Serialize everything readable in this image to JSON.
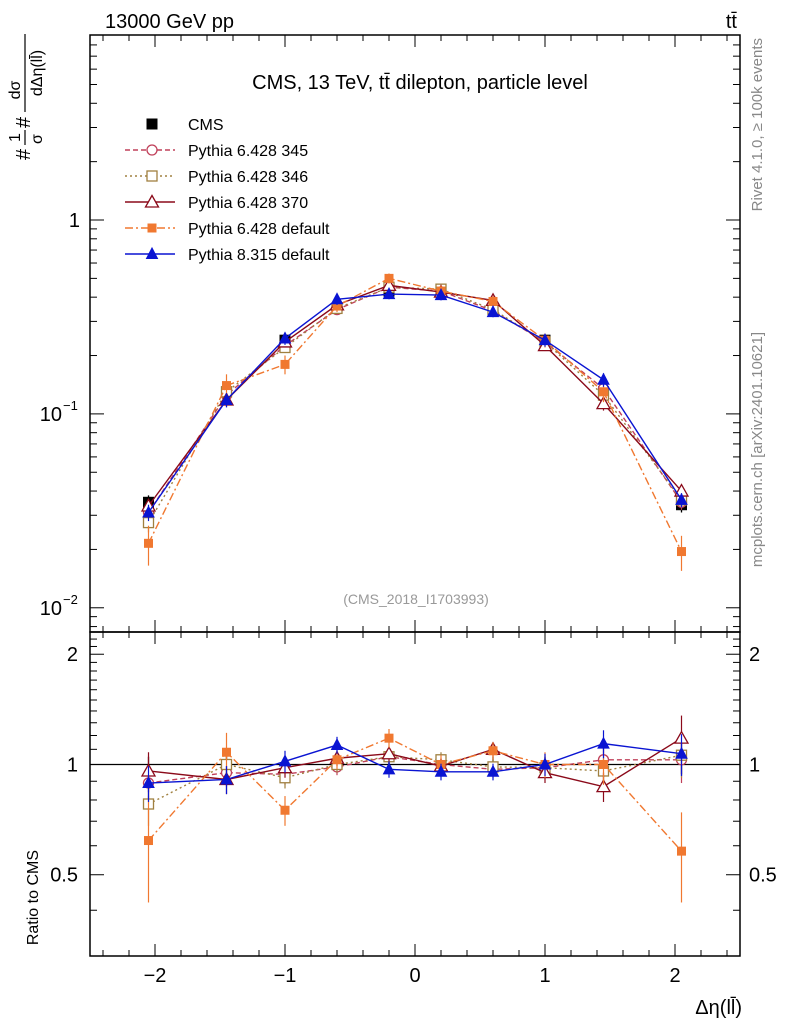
{
  "header": {
    "left": "13000 GeV pp",
    "right": "tt̄"
  },
  "side_text": {
    "rivet": "Rivet 4.1.0, ≥ 100k events",
    "mcplots": "mcplots.cern.ch [arXiv:2401.10621]"
  },
  "chart_data": {
    "type": "line",
    "title": "CMS, 13 TeV, tt̄ dilepton, particle level",
    "watermark": "(CMS_2018_I1703993)",
    "ylabel_top": "1/σ dσ/dΔη(ll̄)",
    "ylabel_top_parts": {
      "hash1": "#",
      "num1": "1",
      "den1": "σ",
      "hash2": "#",
      "num2": "dσ",
      "den2": "dΔη(ll̄)"
    },
    "ylabel_bottom": "Ratio to CMS",
    "xlabel": "Δη(ll̄)",
    "xlim": [
      -2.5,
      2.5
    ],
    "ylim_top": [
      0.0075,
      9.0
    ],
    "yscale_top": "log",
    "ylim_bottom": [
      0.3,
      2.3
    ],
    "yscale_bottom": "log",
    "x_ticks": [
      {
        "value": -2,
        "label": "−2"
      },
      {
        "value": -1,
        "label": "−1"
      },
      {
        "value": 0,
        "label": "0"
      },
      {
        "value": 1,
        "label": "1"
      },
      {
        "value": 2,
        "label": "2"
      }
    ],
    "y_ticks_top": [
      {
        "value": 0.01,
        "base": "10",
        "exp": "−2"
      },
      {
        "value": 0.1,
        "base": "10",
        "exp": "−1"
      },
      {
        "value": 1,
        "base": "1",
        "exp": ""
      }
    ],
    "y_ticks_bottom": [
      {
        "value": 0.5,
        "label": "0.5"
      },
      {
        "value": 1,
        "label": "1"
      },
      {
        "value": 2,
        "label": "2"
      }
    ],
    "x": [
      -2.05,
      -1.45,
      -1.0,
      -0.6,
      -0.2,
      0.2,
      0.6,
      1.0,
      1.45,
      2.05
    ],
    "data": {
      "name": "CMS",
      "values": [
        0.035,
        0.13,
        0.24,
        0.35,
        0.43,
        0.43,
        0.35,
        0.24,
        0.13,
        0.034
      ],
      "errors": [
        0.003,
        0.01,
        0.017,
        0.02,
        0.02,
        0.02,
        0.02,
        0.017,
        0.01,
        0.003
      ]
    },
    "series": [
      {
        "name": "Pythia 6.428 345",
        "color": "#c0405a",
        "dash": "5,3",
        "marker": "circle-open",
        "values": [
          0.031,
          0.125,
          0.225,
          0.345,
          0.45,
          0.43,
          0.34,
          0.235,
          0.135,
          0.035
        ],
        "errors": [
          0.003,
          0.009,
          0.013,
          0.017,
          0.02,
          0.02,
          0.017,
          0.013,
          0.009,
          0.003
        ]
      },
      {
        "name": "Pythia 6.428 346",
        "color": "#a08040",
        "dash": "2,3",
        "marker": "square-open",
        "values": [
          0.0275,
          0.13,
          0.22,
          0.35,
          0.45,
          0.44,
          0.345,
          0.235,
          0.125,
          0.036
        ],
        "errors": [
          0.003,
          0.009,
          0.013,
          0.017,
          0.02,
          0.02,
          0.017,
          0.013,
          0.009,
          0.003
        ]
      },
      {
        "name": "Pythia 6.428 370",
        "color": "#8b0a1a",
        "dash": "",
        "marker": "triangle-open",
        "values": [
          0.0335,
          0.118,
          0.235,
          0.365,
          0.46,
          0.425,
          0.385,
          0.225,
          0.113,
          0.04
        ],
        "errors": [
          0.003,
          0.009,
          0.014,
          0.018,
          0.02,
          0.02,
          0.018,
          0.014,
          0.009,
          0.003
        ]
      },
      {
        "name": "Pythia 6.428 default",
        "color": "#f07830",
        "dash": "8,3,2,3",
        "marker": "square-filled",
        "values": [
          0.0215,
          0.14,
          0.18,
          0.36,
          0.5,
          0.43,
          0.38,
          0.24,
          0.13,
          0.0195
        ],
        "errors": [
          0.005,
          0.02,
          0.02,
          0.025,
          0.03,
          0.03,
          0.025,
          0.02,
          0.015,
          0.004
        ]
      },
      {
        "name": "Pythia 8.315 default",
        "color": "#0a14d2",
        "dash": "",
        "marker": "triangle-filled",
        "values": [
          0.031,
          0.118,
          0.245,
          0.39,
          0.415,
          0.41,
          0.335,
          0.24,
          0.15,
          0.036
        ],
        "errors": [
          0.003,
          0.01,
          0.018,
          0.025,
          0.025,
          0.025,
          0.02,
          0.018,
          0.012,
          0.003
        ]
      }
    ],
    "ratio_data_errors": [
      0.05,
      0.06,
      0.05,
      0.05,
      0.04,
      0.04,
      0.05,
      0.05,
      0.06,
      0.06
    ],
    "ratio_series": [
      {
        "name": "Pythia 6.428 345",
        "values": [
          0.89,
          0.95,
          0.94,
          0.985,
          1.05,
          1.0,
          0.97,
          0.98,
          1.03,
          1.03
        ],
        "errors": [
          0.1,
          0.08,
          0.06,
          0.05,
          0.05,
          0.05,
          0.05,
          0.06,
          0.08,
          0.14
        ]
      },
      {
        "name": "Pythia 6.428 346",
        "values": [
          0.78,
          1.0,
          0.92,
          1.0,
          1.05,
          1.03,
          0.985,
          0.98,
          0.96,
          1.06
        ],
        "errors": [
          0.1,
          0.08,
          0.06,
          0.05,
          0.05,
          0.05,
          0.05,
          0.06,
          0.08,
          0.14
        ]
      },
      {
        "name": "Pythia 6.428 370",
        "values": [
          0.96,
          0.91,
          0.98,
          1.04,
          1.07,
          0.99,
          1.1,
          0.95,
          0.87,
          1.18
        ],
        "errors": [
          0.12,
          0.08,
          0.06,
          0.05,
          0.05,
          0.05,
          0.05,
          0.06,
          0.08,
          0.18
        ]
      },
      {
        "name": "Pythia 6.428 default",
        "values": [
          0.62,
          1.08,
          0.75,
          1.03,
          1.18,
          1.0,
          1.09,
          1.0,
          1.0,
          0.58
        ],
        "errors": [
          0.2,
          0.14,
          0.07,
          0.06,
          0.07,
          0.06,
          0.06,
          0.08,
          0.12,
          0.16
        ]
      },
      {
        "name": "Pythia 8.315 default",
        "values": [
          0.89,
          0.91,
          1.02,
          1.13,
          0.97,
          0.955,
          0.955,
          1.0,
          1.14,
          1.07
        ],
        "errors": [
          0.1,
          0.08,
          0.07,
          0.06,
          0.05,
          0.05,
          0.05,
          0.07,
          0.1,
          0.14
        ]
      }
    ]
  }
}
